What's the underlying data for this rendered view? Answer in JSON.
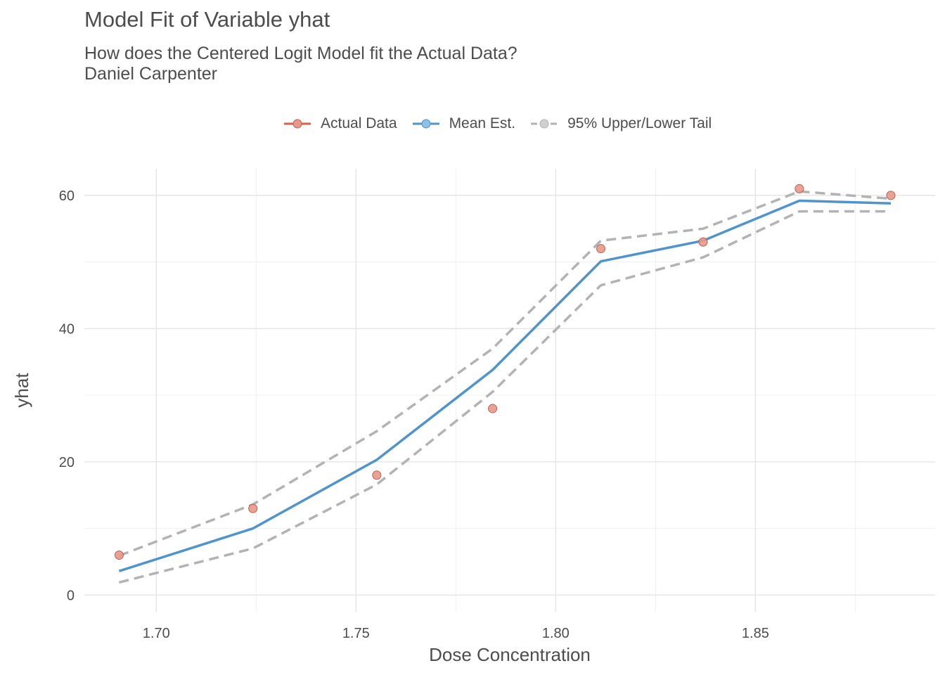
{
  "chart_data": {
    "type": "line",
    "title": "Model Fit of Variable yhat",
    "subtitle_lines": [
      "How does the Centered Logit Model fit the Actual Data?",
      "Daniel Carpenter"
    ],
    "xlabel": "Dose Concentration",
    "ylabel": "yhat",
    "xlim": [
      1.682,
      1.895
    ],
    "ylim": [
      -2.5,
      64
    ],
    "x_ticks": [
      1.7,
      1.75,
      1.8,
      1.85
    ],
    "x_tick_labels": [
      "1.70",
      "1.75",
      "1.80",
      "1.85"
    ],
    "y_ticks": [
      0,
      20,
      40,
      60
    ],
    "y_tick_labels": [
      "0",
      "20",
      "40",
      "60"
    ],
    "grid": true,
    "legend_position": "top",
    "x": [
      1.6907,
      1.7242,
      1.7552,
      1.7842,
      1.8113,
      1.8369,
      1.861,
      1.8839
    ],
    "series": [
      {
        "name": "Actual Data",
        "kind": "points",
        "color": "#d6604d",
        "values": [
          6,
          13,
          18,
          28,
          52,
          53,
          61,
          60
        ]
      },
      {
        "name": "Mean Est.",
        "kind": "line",
        "color": "#4f94cd",
        "values": [
          3.6,
          10.0,
          20.3,
          33.8,
          50.1,
          53.2,
          59.2,
          58.8
        ]
      },
      {
        "name": "95% Upper/Lower Tail",
        "kind": "dashed",
        "color": "#b3b3b3",
        "upper": [
          5.9,
          13.6,
          24.6,
          37.0,
          53.2,
          55.0,
          60.6,
          59.5
        ],
        "lower": [
          1.9,
          7.0,
          16.6,
          30.5,
          46.5,
          50.7,
          57.6,
          57.6
        ]
      }
    ]
  }
}
